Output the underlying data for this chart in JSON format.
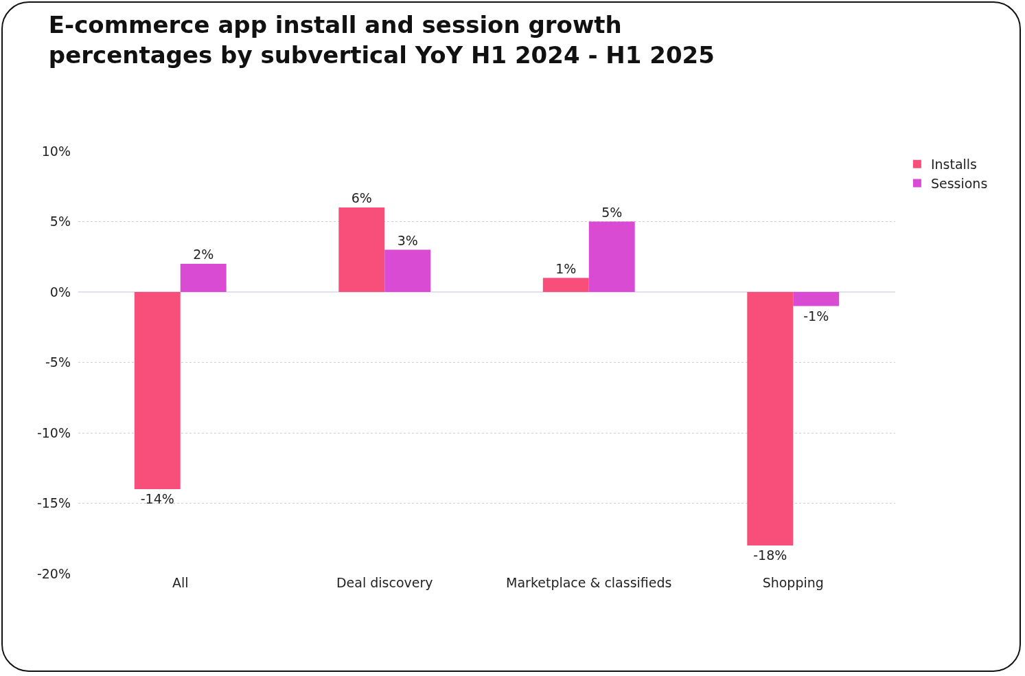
{
  "chart_data": {
    "type": "bar",
    "title": "E-commerce app install and session growth\npercentages by subvertical YoY H1 2024 - H1 2025",
    "categories": [
      "All",
      "Deal discovery",
      "Marketplace & classifieds",
      "Shopping"
    ],
    "series": [
      {
        "name": "Installs",
        "color": "#f74f7a",
        "values": [
          -14,
          6,
          1,
          -18
        ],
        "value_labels": [
          "-14%",
          "6%",
          "1%",
          "-18%"
        ]
      },
      {
        "name": "Sessions",
        "color": "#d84bd2",
        "values": [
          2,
          3,
          5,
          -1
        ],
        "value_labels": [
          "2%",
          "3%",
          "5%",
          "-1%"
        ]
      }
    ],
    "ylim": [
      -20,
      10
    ],
    "yticks": [
      {
        "value": 10,
        "label": "10%"
      },
      {
        "value": 5,
        "label": "5%"
      },
      {
        "value": 0,
        "label": "0%"
      },
      {
        "value": -5,
        "label": "-5%"
      },
      {
        "value": -10,
        "label": "-10%"
      },
      {
        "value": -15,
        "label": "-15%"
      },
      {
        "value": -20,
        "label": "-20%"
      }
    ],
    "grid": "y",
    "legend": "top right"
  }
}
